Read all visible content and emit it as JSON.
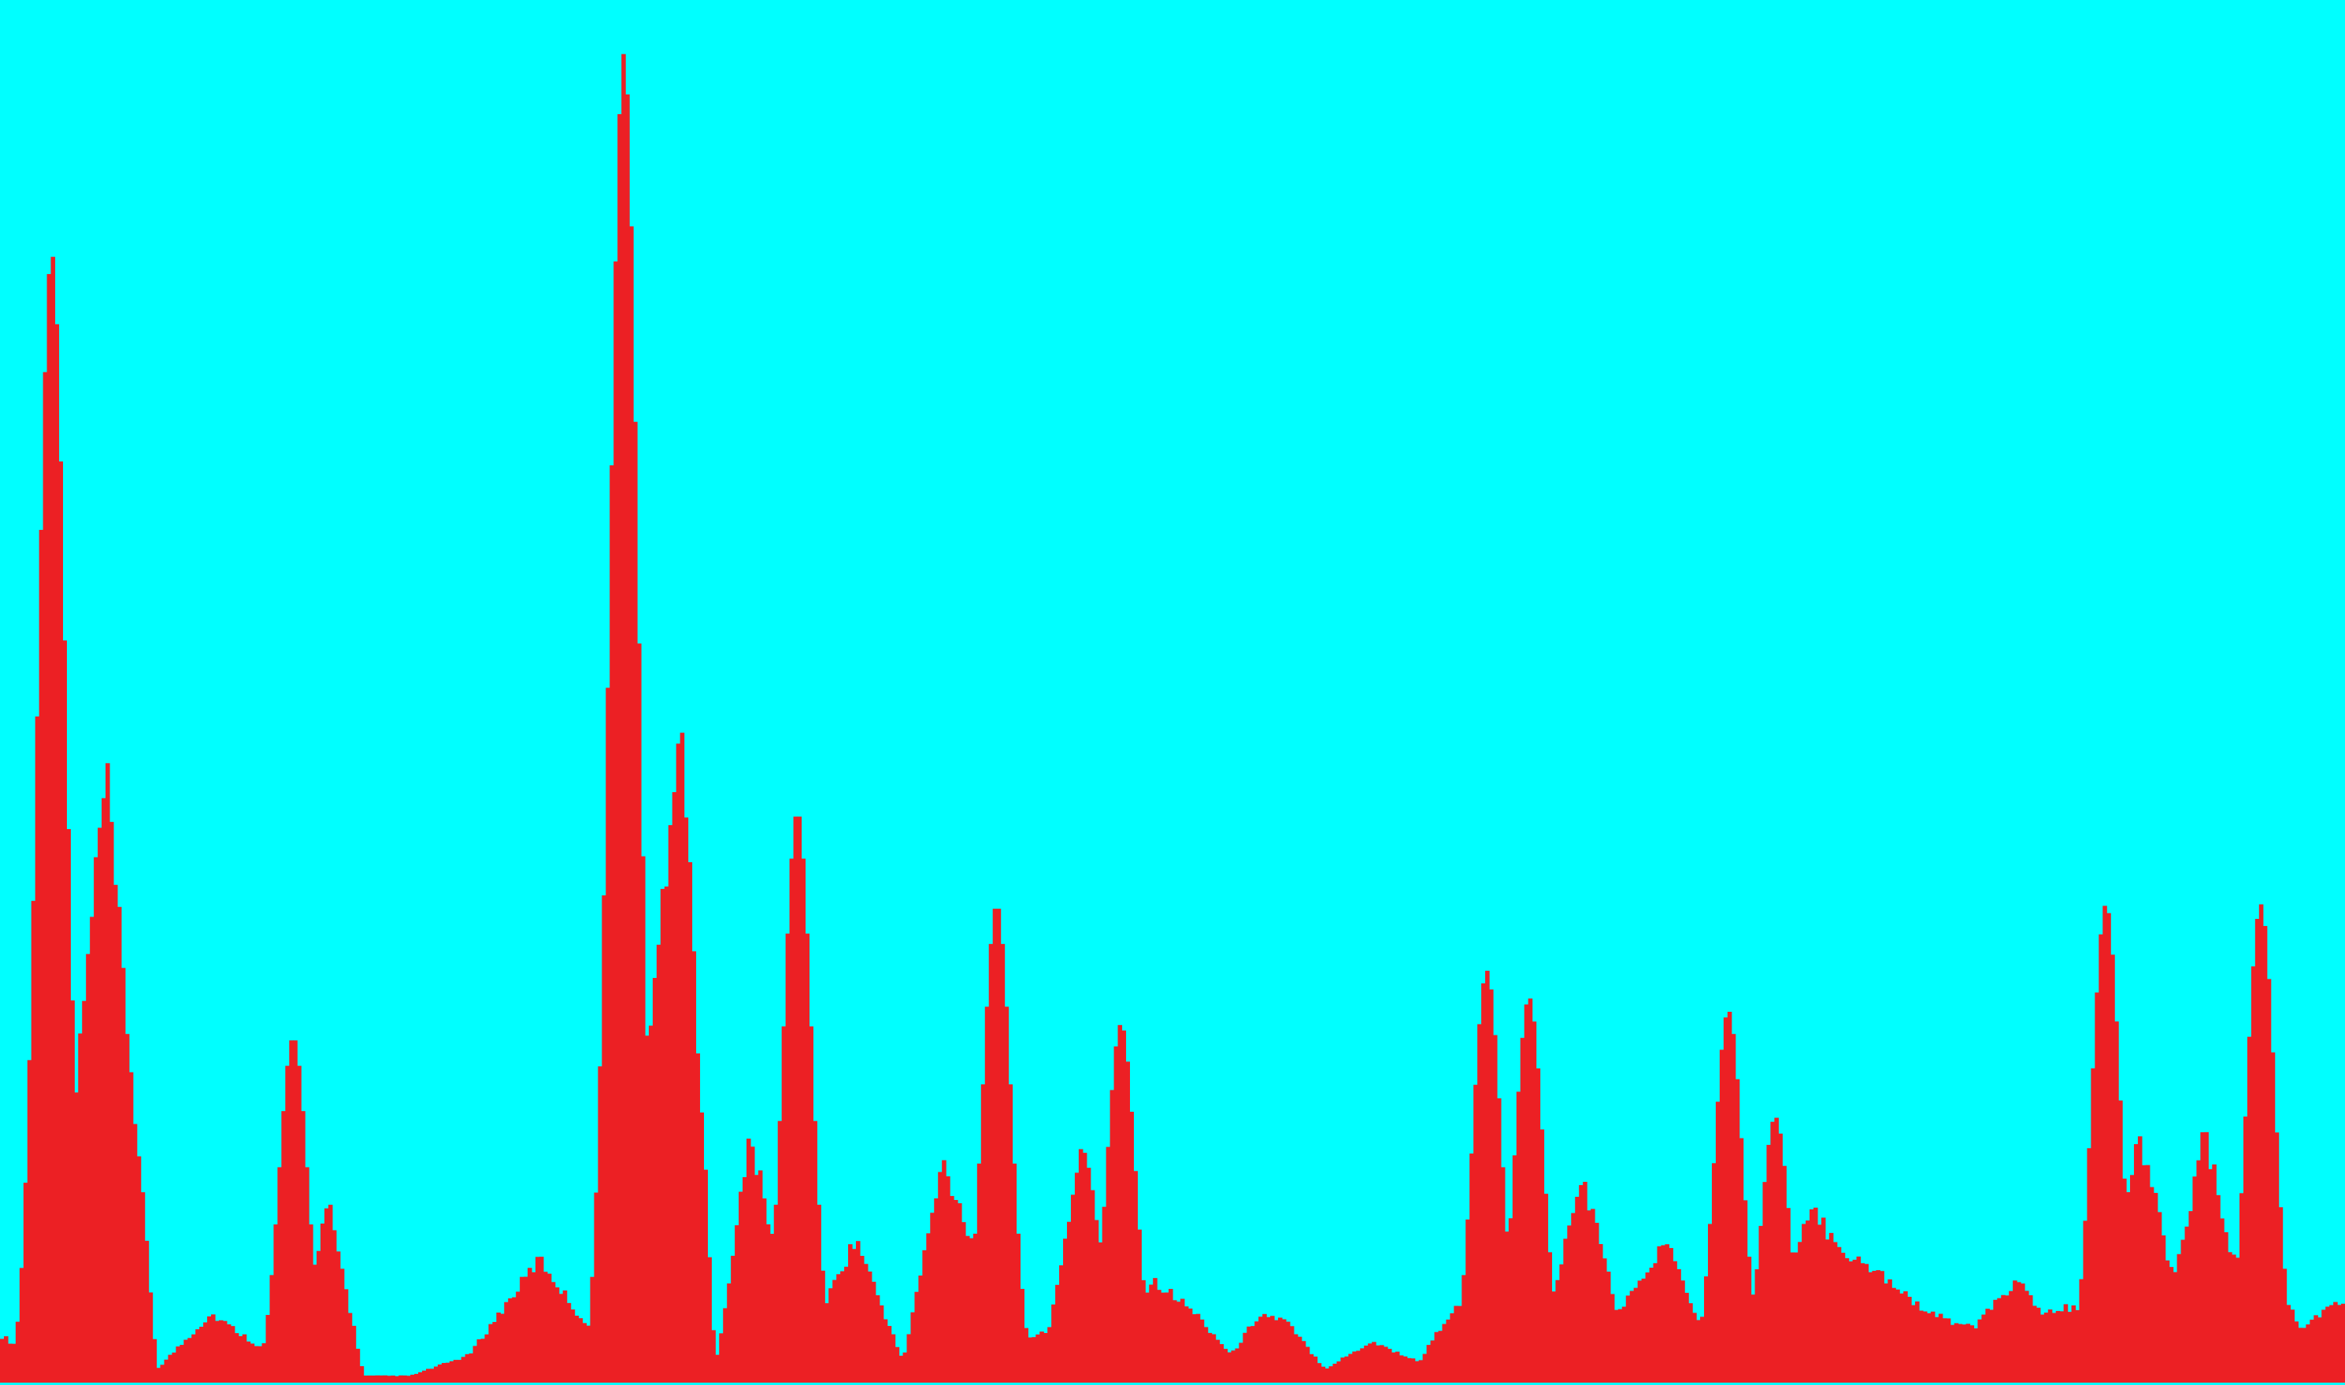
{
  "colors": {
    "background": "#00ffff",
    "bars": "#ec2024"
  },
  "chart_data": {
    "type": "area",
    "title": "",
    "xlabel": "",
    "ylabel": "",
    "xlim": [
      0,
      1
    ],
    "ylim": [
      0,
      100
    ],
    "grid": false,
    "legend": "none",
    "bin_count": 600,
    "x": [
      0.0,
      0.021,
      0.045,
      0.067,
      0.09,
      0.125,
      0.14,
      0.155,
      0.175,
      0.2,
      0.23,
      0.265,
      0.29,
      0.305,
      0.32,
      0.34,
      0.365,
      0.385,
      0.402,
      0.43,
      0.447,
      0.462,
      0.475,
      0.492,
      0.51,
      0.525,
      0.537,
      0.548,
      0.565,
      0.585,
      0.605,
      0.618,
      0.627,
      0.637,
      0.646,
      0.66,
      0.675,
      0.69,
      0.712,
      0.725,
      0.742,
      0.755,
      0.772,
      0.79,
      0.806,
      0.822,
      0.842,
      0.86,
      0.87,
      0.898,
      0.912,
      0.927,
      0.94,
      0.955,
      0.968,
      0.98,
      1.0
    ],
    "y": [
      7,
      2,
      88,
      2,
      10,
      2,
      26,
      1,
      1,
      4,
      18,
      1,
      100,
      2,
      36,
      3,
      21,
      3,
      32,
      7,
      7,
      36,
      6,
      15,
      10,
      4,
      10,
      9,
      2,
      6,
      3,
      10,
      12,
      16,
      12,
      10,
      30,
      10,
      21,
      8,
      18,
      6,
      25,
      18,
      15,
      10,
      8,
      15,
      10,
      12,
      36,
      15,
      36,
      14,
      18,
      8,
      12
    ],
    "peaks": [
      {
        "x": 0.022,
        "y": 85
      },
      {
        "x": 0.125,
        "y": 26
      },
      {
        "x": 0.266,
        "y": 100
      },
      {
        "x": 0.29,
        "y": 38
      },
      {
        "x": 0.34,
        "y": 43
      },
      {
        "x": 0.425,
        "y": 36
      },
      {
        "x": 0.478,
        "y": 27
      },
      {
        "x": 0.634,
        "y": 31
      },
      {
        "x": 0.652,
        "y": 29
      },
      {
        "x": 0.737,
        "y": 28
      },
      {
        "x": 0.757,
        "y": 20
      },
      {
        "x": 0.898,
        "y": 36
      },
      {
        "x": 0.964,
        "y": 36
      }
    ],
    "series": [
      {
        "name": "histogram",
        "color": "#ec2024"
      }
    ]
  }
}
